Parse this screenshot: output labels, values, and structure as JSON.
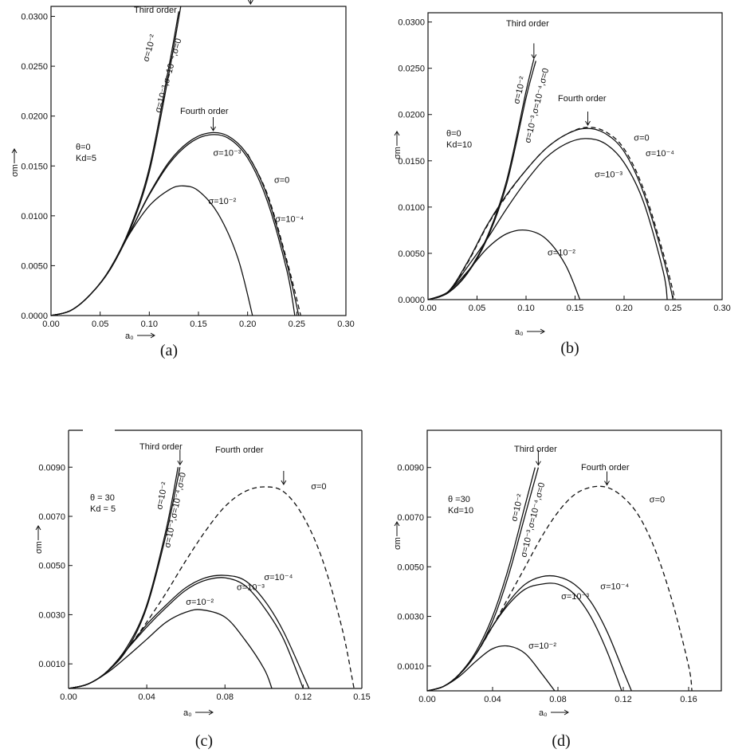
{
  "chart_data": [
    {
      "id": "a",
      "type": "line",
      "caption": "(a)",
      "xlabel": "a₀",
      "ylabel": "σm",
      "xlim": [
        0,
        0.3
      ],
      "ylim": [
        0,
        0.031
      ],
      "xticks": [
        0,
        0.05,
        0.1,
        0.15,
        0.2,
        0.25,
        0.3
      ],
      "xtick_labels": [
        "0.00",
        "0.05",
        "0.10",
        "0.15",
        "0.20",
        "0.25",
        "0.30"
      ],
      "yticks": [
        0,
        0.005,
        0.01,
        0.015,
        0.02,
        0.025,
        0.03
      ],
      "ytick_labels": [
        "0.0000",
        "0.0050",
        "0.0100",
        "0.0150",
        "0.0200",
        "0.0250",
        "0.0300"
      ],
      "params": [
        "θ=0",
        "Kd=5"
      ],
      "annotations": {
        "third_order": "Third order",
        "fourth_order": "Fourth order",
        "third_curves": [
          "σ=10⁻²",
          "σ=10⁻³,σ=10⁻⁴,σ=0"
        ]
      },
      "third_order": [
        {
          "name": "σ=10⁻²",
          "x": [
            0,
            0.02,
            0.04,
            0.06,
            0.08,
            0.1,
            0.12,
            0.13
          ],
          "y": [
            0,
            0.0005,
            0.0021,
            0.0047,
            0.0087,
            0.0148,
            0.025,
            0.0305
          ]
        },
        {
          "name": "σ=10⁻³,σ=10⁻⁴,σ=0",
          "x": [
            0,
            0.02,
            0.04,
            0.06,
            0.08,
            0.1,
            0.12,
            0.132
          ],
          "y": [
            0,
            0.0005,
            0.0021,
            0.0046,
            0.0085,
            0.0144,
            0.0243,
            0.031
          ]
        }
      ],
      "fourth_order": [
        {
          "name": "σ=10⁻²",
          "style": "solid",
          "x": [
            0,
            0.02,
            0.04,
            0.06,
            0.08,
            0.1,
            0.12,
            0.134,
            0.15,
            0.17,
            0.19,
            0.205
          ],
          "y": [
            0,
            0.0005,
            0.0021,
            0.0046,
            0.0082,
            0.011,
            0.0126,
            0.013,
            0.0125,
            0.0102,
            0.0058,
            0
          ]
        },
        {
          "name": "σ=10⁻³",
          "style": "solid",
          "x": [
            0,
            0.02,
            0.04,
            0.06,
            0.08,
            0.1,
            0.12,
            0.14,
            0.16,
            0.18,
            0.2,
            0.22,
            0.24,
            0.248
          ],
          "y": [
            0,
            0.0005,
            0.0021,
            0.0046,
            0.0083,
            0.0121,
            0.0152,
            0.0172,
            0.0181,
            0.0178,
            0.0158,
            0.0115,
            0.0045,
            0
          ]
        },
        {
          "name": "σ=0",
          "style": "solid",
          "x": [
            0,
            0.02,
            0.04,
            0.06,
            0.08,
            0.1,
            0.12,
            0.14,
            0.16,
            0.18,
            0.2,
            0.22,
            0.24,
            0.252
          ],
          "y": [
            0,
            0.0005,
            0.0021,
            0.0046,
            0.0083,
            0.0122,
            0.0154,
            0.0174,
            0.0183,
            0.018,
            0.0161,
            0.012,
            0.0052,
            0
          ]
        },
        {
          "name": "σ=10⁻⁴",
          "style": "dashed",
          "x": [
            0.2,
            0.22,
            0.24,
            0.254
          ],
          "y": [
            0.0162,
            0.0122,
            0.0055,
            0
          ]
        }
      ],
      "labels": [
        {
          "text": "σ=10⁻³",
          "x": 0.165,
          "y": 0.016
        },
        {
          "text": "σ=0",
          "x": 0.227,
          "y": 0.0133
        },
        {
          "text": "σ=10⁻⁴",
          "x": 0.228,
          "y": 0.0094
        },
        {
          "text": "σ=10⁻²",
          "x": 0.16,
          "y": 0.0112
        }
      ]
    },
    {
      "id": "b",
      "type": "line",
      "caption": "(b)",
      "xlabel": "a₀",
      "ylabel": "σm",
      "xlim": [
        0,
        0.3
      ],
      "ylim": [
        0,
        0.031
      ],
      "xticks": [
        0,
        0.05,
        0.1,
        0.15,
        0.2,
        0.25,
        0.3
      ],
      "xtick_labels": [
        "0.00",
        "0.05",
        "0.10",
        "0.15",
        "0.20",
        "0.25",
        "0.30"
      ],
      "yticks": [
        0,
        0.005,
        0.01,
        0.015,
        0.02,
        0.025,
        0.03
      ],
      "ytick_labels": [
        "0.0000",
        "0.0050",
        "0.0100",
        "0.0150",
        "0.0200",
        "0.0250",
        "0.0300"
      ],
      "params": [
        "θ=0",
        "Kd=10"
      ],
      "annotations": {
        "third_order": "Third order",
        "fourth_order": "Fourth order",
        "third_curves": [
          "σ=10⁻²",
          "σ=10⁻³,σ=10⁻⁴,σ=0"
        ]
      },
      "third_order": [
        {
          "name": "σ=10⁻²",
          "x": [
            0,
            0.02,
            0.04,
            0.06,
            0.08,
            0.1,
            0.108
          ],
          "y": [
            0,
            0.0007,
            0.0029,
            0.0067,
            0.0128,
            0.0225,
            0.026
          ]
        },
        {
          "name": "σ=10⁻³,σ=10⁻⁴,σ=0",
          "x": [
            0,
            0.02,
            0.04,
            0.06,
            0.08,
            0.1,
            0.11
          ],
          "y": [
            0,
            0.0007,
            0.0028,
            0.0065,
            0.0124,
            0.0218,
            0.0258
          ]
        }
      ],
      "fourth_order": [
        {
          "name": "σ=10⁻²",
          "style": "solid",
          "x": [
            0,
            0.02,
            0.04,
            0.06,
            0.08,
            0.1,
            0.12,
            0.14,
            0.155
          ],
          "y": [
            0,
            0.0008,
            0.003,
            0.0055,
            0.0071,
            0.0075,
            0.0066,
            0.0038,
            0
          ]
        },
        {
          "name": "σ=10⁻³",
          "style": "solid",
          "x": [
            0,
            0.02,
            0.04,
            0.06,
            0.08,
            0.1,
            0.12,
            0.14,
            0.16,
            0.18,
            0.2,
            0.22,
            0.24,
            0.244
          ],
          "y": [
            0,
            0.0008,
            0.0035,
            0.0065,
            0.0098,
            0.0128,
            0.0153,
            0.0168,
            0.0174,
            0.0169,
            0.0148,
            0.0105,
            0.003,
            0
          ]
        },
        {
          "name": "σ=0",
          "style": "solid",
          "x": [
            0,
            0.02,
            0.04,
            0.06,
            0.08,
            0.1,
            0.12,
            0.14,
            0.16,
            0.18,
            0.2,
            0.22,
            0.24,
            0.25
          ],
          "y": [
            0,
            0.0008,
            0.004,
            0.008,
            0.0113,
            0.014,
            0.0163,
            0.0178,
            0.0185,
            0.018,
            0.016,
            0.0115,
            0.0045,
            0
          ]
        },
        {
          "name": "σ=10⁻⁴",
          "style": "dashed",
          "x": [
            0,
            0.02,
            0.04,
            0.06,
            0.08,
            0.1,
            0.12,
            0.14,
            0.16,
            0.18,
            0.2,
            0.22,
            0.24,
            0.252
          ],
          "y": [
            0,
            0.0008,
            0.0039,
            0.0079,
            0.0112,
            0.014,
            0.0163,
            0.0178,
            0.0186,
            0.0182,
            0.0163,
            0.0119,
            0.005,
            0
          ]
        }
      ],
      "labels": [
        {
          "text": "σ=0",
          "x": 0.21,
          "y": 0.0172
        },
        {
          "text": "σ=10⁻⁴",
          "x": 0.222,
          "y": 0.0155
        },
        {
          "text": "σ=10⁻³",
          "x": 0.17,
          "y": 0.0132
        },
        {
          "text": "σ=10⁻²",
          "x": 0.122,
          "y": 0.0048
        }
      ]
    },
    {
      "id": "c",
      "type": "line",
      "caption": "(c)",
      "xlabel": "a₀",
      "ylabel": "σm",
      "xlim": [
        0,
        0.15
      ],
      "ylim": [
        0,
        0.0105
      ],
      "xticks": [
        0,
        0.04,
        0.08,
        0.12,
        0.15
      ],
      "xtick_labels": [
        "0.00",
        "0.04",
        "0.08",
        "0.12",
        "0.15"
      ],
      "yticks": [
        0.001,
        0.003,
        0.005,
        0.007,
        0.009
      ],
      "ytick_labels": [
        "0.0010",
        "0.0030",
        "0.0050",
        "0.0070",
        "0.0090"
      ],
      "params": [
        "θ = 30",
        "Kd = 5"
      ],
      "annotations": {
        "third_order": "Third order",
        "fourth_order": "Fourth order",
        "third_curves": [
          "σ=10⁻²",
          "σ=10⁻³,σ=10⁻⁴,σ=0"
        ]
      },
      "third_order": [
        {
          "name": "σ=10⁻²",
          "x": [
            0,
            0.01,
            0.02,
            0.03,
            0.04,
            0.05,
            0.056
          ],
          "y": [
            0,
            0.00018,
            0.00072,
            0.0017,
            0.0034,
            0.0065,
            0.009
          ]
        },
        {
          "name": "σ=10⁻³,σ=10⁻⁴,σ=0",
          "x": [
            0,
            0.01,
            0.02,
            0.03,
            0.04,
            0.05,
            0.057
          ],
          "y": [
            0,
            0.00018,
            0.0007,
            0.0016,
            0.0033,
            0.0063,
            0.009
          ]
        }
      ],
      "fourth_order": [
        {
          "name": "σ=0",
          "style": "dashed",
          "x": [
            0,
            0.01,
            0.02,
            0.03,
            0.04,
            0.05,
            0.06,
            0.07,
            0.08,
            0.09,
            0.1,
            0.11,
            0.12,
            0.13,
            0.14,
            0.146
          ],
          "y": [
            0,
            0.00018,
            0.0007,
            0.0016,
            0.0027,
            0.0039,
            0.0052,
            0.0064,
            0.0074,
            0.008,
            0.0082,
            0.008,
            0.007,
            0.0052,
            0.0024,
            0
          ]
        },
        {
          "name": "σ=10⁻²",
          "style": "solid",
          "x": [
            0,
            0.01,
            0.02,
            0.03,
            0.04,
            0.05,
            0.06,
            0.068,
            0.08,
            0.09,
            0.1,
            0.104
          ],
          "y": [
            0,
            0.00018,
            0.00065,
            0.0013,
            0.002,
            0.0027,
            0.0031,
            0.0032,
            0.0029,
            0.002,
            0.0008,
            0
          ]
        },
        {
          "name": "σ=10⁻³",
          "style": "solid",
          "x": [
            0,
            0.01,
            0.02,
            0.03,
            0.04,
            0.05,
            0.06,
            0.07,
            0.08,
            0.09,
            0.1,
            0.11,
            0.12
          ],
          "y": [
            0,
            0.00018,
            0.0007,
            0.0016,
            0.0025,
            0.0033,
            0.004,
            0.0044,
            0.0045,
            0.0042,
            0.0033,
            0.002,
            0
          ]
        },
        {
          "name": "σ=10⁻⁴",
          "style": "solid",
          "x": [
            0,
            0.01,
            0.02,
            0.03,
            0.04,
            0.05,
            0.06,
            0.07,
            0.08,
            0.09,
            0.1,
            0.11,
            0.123
          ],
          "y": [
            0,
            0.00018,
            0.0007,
            0.0016,
            0.0026,
            0.0034,
            0.0041,
            0.0045,
            0.0046,
            0.0044,
            0.0036,
            0.0023,
            0
          ]
        }
      ],
      "labels": [
        {
          "text": "σ=0",
          "x": 0.124,
          "y": 0.0081
        },
        {
          "text": "σ=10⁻⁴",
          "x": 0.1,
          "y": 0.0044
        },
        {
          "text": "σ=10⁻³",
          "x": 0.086,
          "y": 0.004
        },
        {
          "text": "σ=10⁻²",
          "x": 0.06,
          "y": 0.0034
        }
      ]
    },
    {
      "id": "d",
      "type": "line",
      "caption": "(d)",
      "xlabel": "a₀",
      "ylabel": "σm",
      "xlim": [
        0,
        0.18
      ],
      "ylim": [
        0,
        0.0105
      ],
      "xticks": [
        0,
        0.04,
        0.08,
        0.12,
        0.16
      ],
      "xtick_labels": [
        "0.00",
        "0.04",
        "0.08",
        "0.12",
        "0.16"
      ],
      "yticks": [
        0.001,
        0.003,
        0.005,
        0.007,
        0.009
      ],
      "ytick_labels": [
        "0.0010",
        "0.0030",
        "0.0050",
        "0.0070",
        "0.0090"
      ],
      "params": [
        "θ =30",
        "Kd=10"
      ],
      "annotations": {
        "third_order": "Third order",
        "fourth_order": "Fourth order",
        "third_curves": [
          "σ=10⁻²",
          "σ=10⁻³,σ=10⁻⁴,σ=0"
        ]
      },
      "third_order": [
        {
          "name": "σ=10⁻²",
          "x": [
            0,
            0.01,
            0.02,
            0.03,
            0.04,
            0.05,
            0.06,
            0.066
          ],
          "y": [
            0,
            0.00018,
            0.0007,
            0.0016,
            0.003,
            0.005,
            0.0075,
            0.009
          ]
        },
        {
          "name": "σ=10⁻³,σ=10⁻⁴,σ=0",
          "x": [
            0,
            0.01,
            0.02,
            0.03,
            0.04,
            0.05,
            0.06,
            0.068
          ],
          "y": [
            0,
            0.00018,
            0.00068,
            0.0015,
            0.0028,
            0.0047,
            0.0071,
            0.009
          ]
        }
      ],
      "fourth_order": [
        {
          "name": "σ=0",
          "style": "dashed",
          "x": [
            0,
            0.01,
            0.02,
            0.03,
            0.04,
            0.05,
            0.06,
            0.07,
            0.08,
            0.09,
            0.1,
            0.11,
            0.12,
            0.13,
            0.14,
            0.15,
            0.16,
            0.162
          ],
          "y": [
            0,
            0.00018,
            0.00068,
            0.0015,
            0.0026,
            0.0038,
            0.005,
            0.0062,
            0.0072,
            0.0079,
            0.0082,
            0.0082,
            0.0078,
            0.007,
            0.0056,
            0.0036,
            0.001,
            0
          ]
        },
        {
          "name": "σ=10⁻²",
          "style": "solid",
          "x": [
            0,
            0.01,
            0.02,
            0.03,
            0.04,
            0.05,
            0.06,
            0.07,
            0.078
          ],
          "y": [
            0,
            0.00018,
            0.0006,
            0.0012,
            0.0017,
            0.0018,
            0.0015,
            0.0007,
            0
          ]
        },
        {
          "name": "σ=10⁻³",
          "style": "solid",
          "x": [
            0,
            0.01,
            0.02,
            0.03,
            0.04,
            0.05,
            0.06,
            0.07,
            0.08,
            0.09,
            0.1,
            0.11,
            0.119
          ],
          "y": [
            0,
            0.00018,
            0.00068,
            0.0015,
            0.0026,
            0.0035,
            0.0041,
            0.0043,
            0.0043,
            0.0039,
            0.003,
            0.0016,
            0
          ]
        },
        {
          "name": "σ=10⁻⁴",
          "style": "solid",
          "x": [
            0,
            0.01,
            0.02,
            0.03,
            0.04,
            0.05,
            0.06,
            0.07,
            0.08,
            0.09,
            0.1,
            0.11,
            0.12,
            0.125
          ],
          "y": [
            0,
            0.00018,
            0.00068,
            0.0015,
            0.0026,
            0.0036,
            0.0043,
            0.0046,
            0.0046,
            0.0043,
            0.0036,
            0.0024,
            0.0008,
            0
          ]
        }
      ],
      "labels": [
        {
          "text": "σ=0",
          "x": 0.136,
          "y": 0.0076
        },
        {
          "text": "σ=10⁻⁴",
          "x": 0.106,
          "y": 0.0041
        },
        {
          "text": "σ=10⁻³",
          "x": 0.082,
          "y": 0.0037
        },
        {
          "text": "σ=10⁻²",
          "x": 0.062,
          "y": 0.0017
        }
      ]
    }
  ]
}
